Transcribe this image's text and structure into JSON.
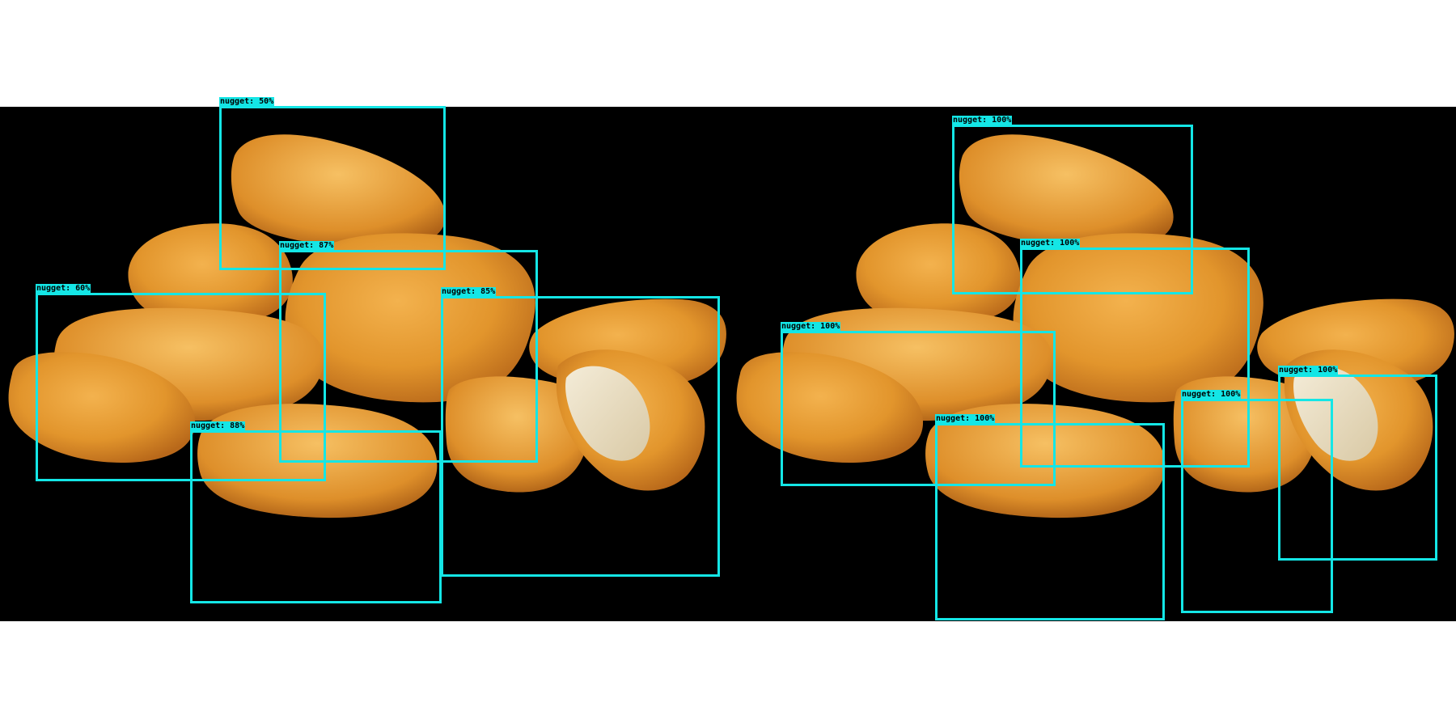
{
  "box_color": "#14e6e6",
  "background_color": "#000000",
  "left_panel": {
    "detections": [
      {
        "label": "nugget: 50%"
      },
      {
        "label": "nugget: 87%"
      },
      {
        "label": "nugget: 60%"
      },
      {
        "label": "nugget: 85%"
      },
      {
        "label": "nugget: 88%"
      }
    ]
  },
  "right_panel": {
    "detections": [
      {
        "label": "nugget: 100%"
      },
      {
        "label": "nugget: 100%"
      },
      {
        "label": "nugget: 100%"
      },
      {
        "label": "nugget: 100%"
      },
      {
        "label": "nugget: 100%"
      },
      {
        "label": "nugget: 100%"
      }
    ]
  }
}
